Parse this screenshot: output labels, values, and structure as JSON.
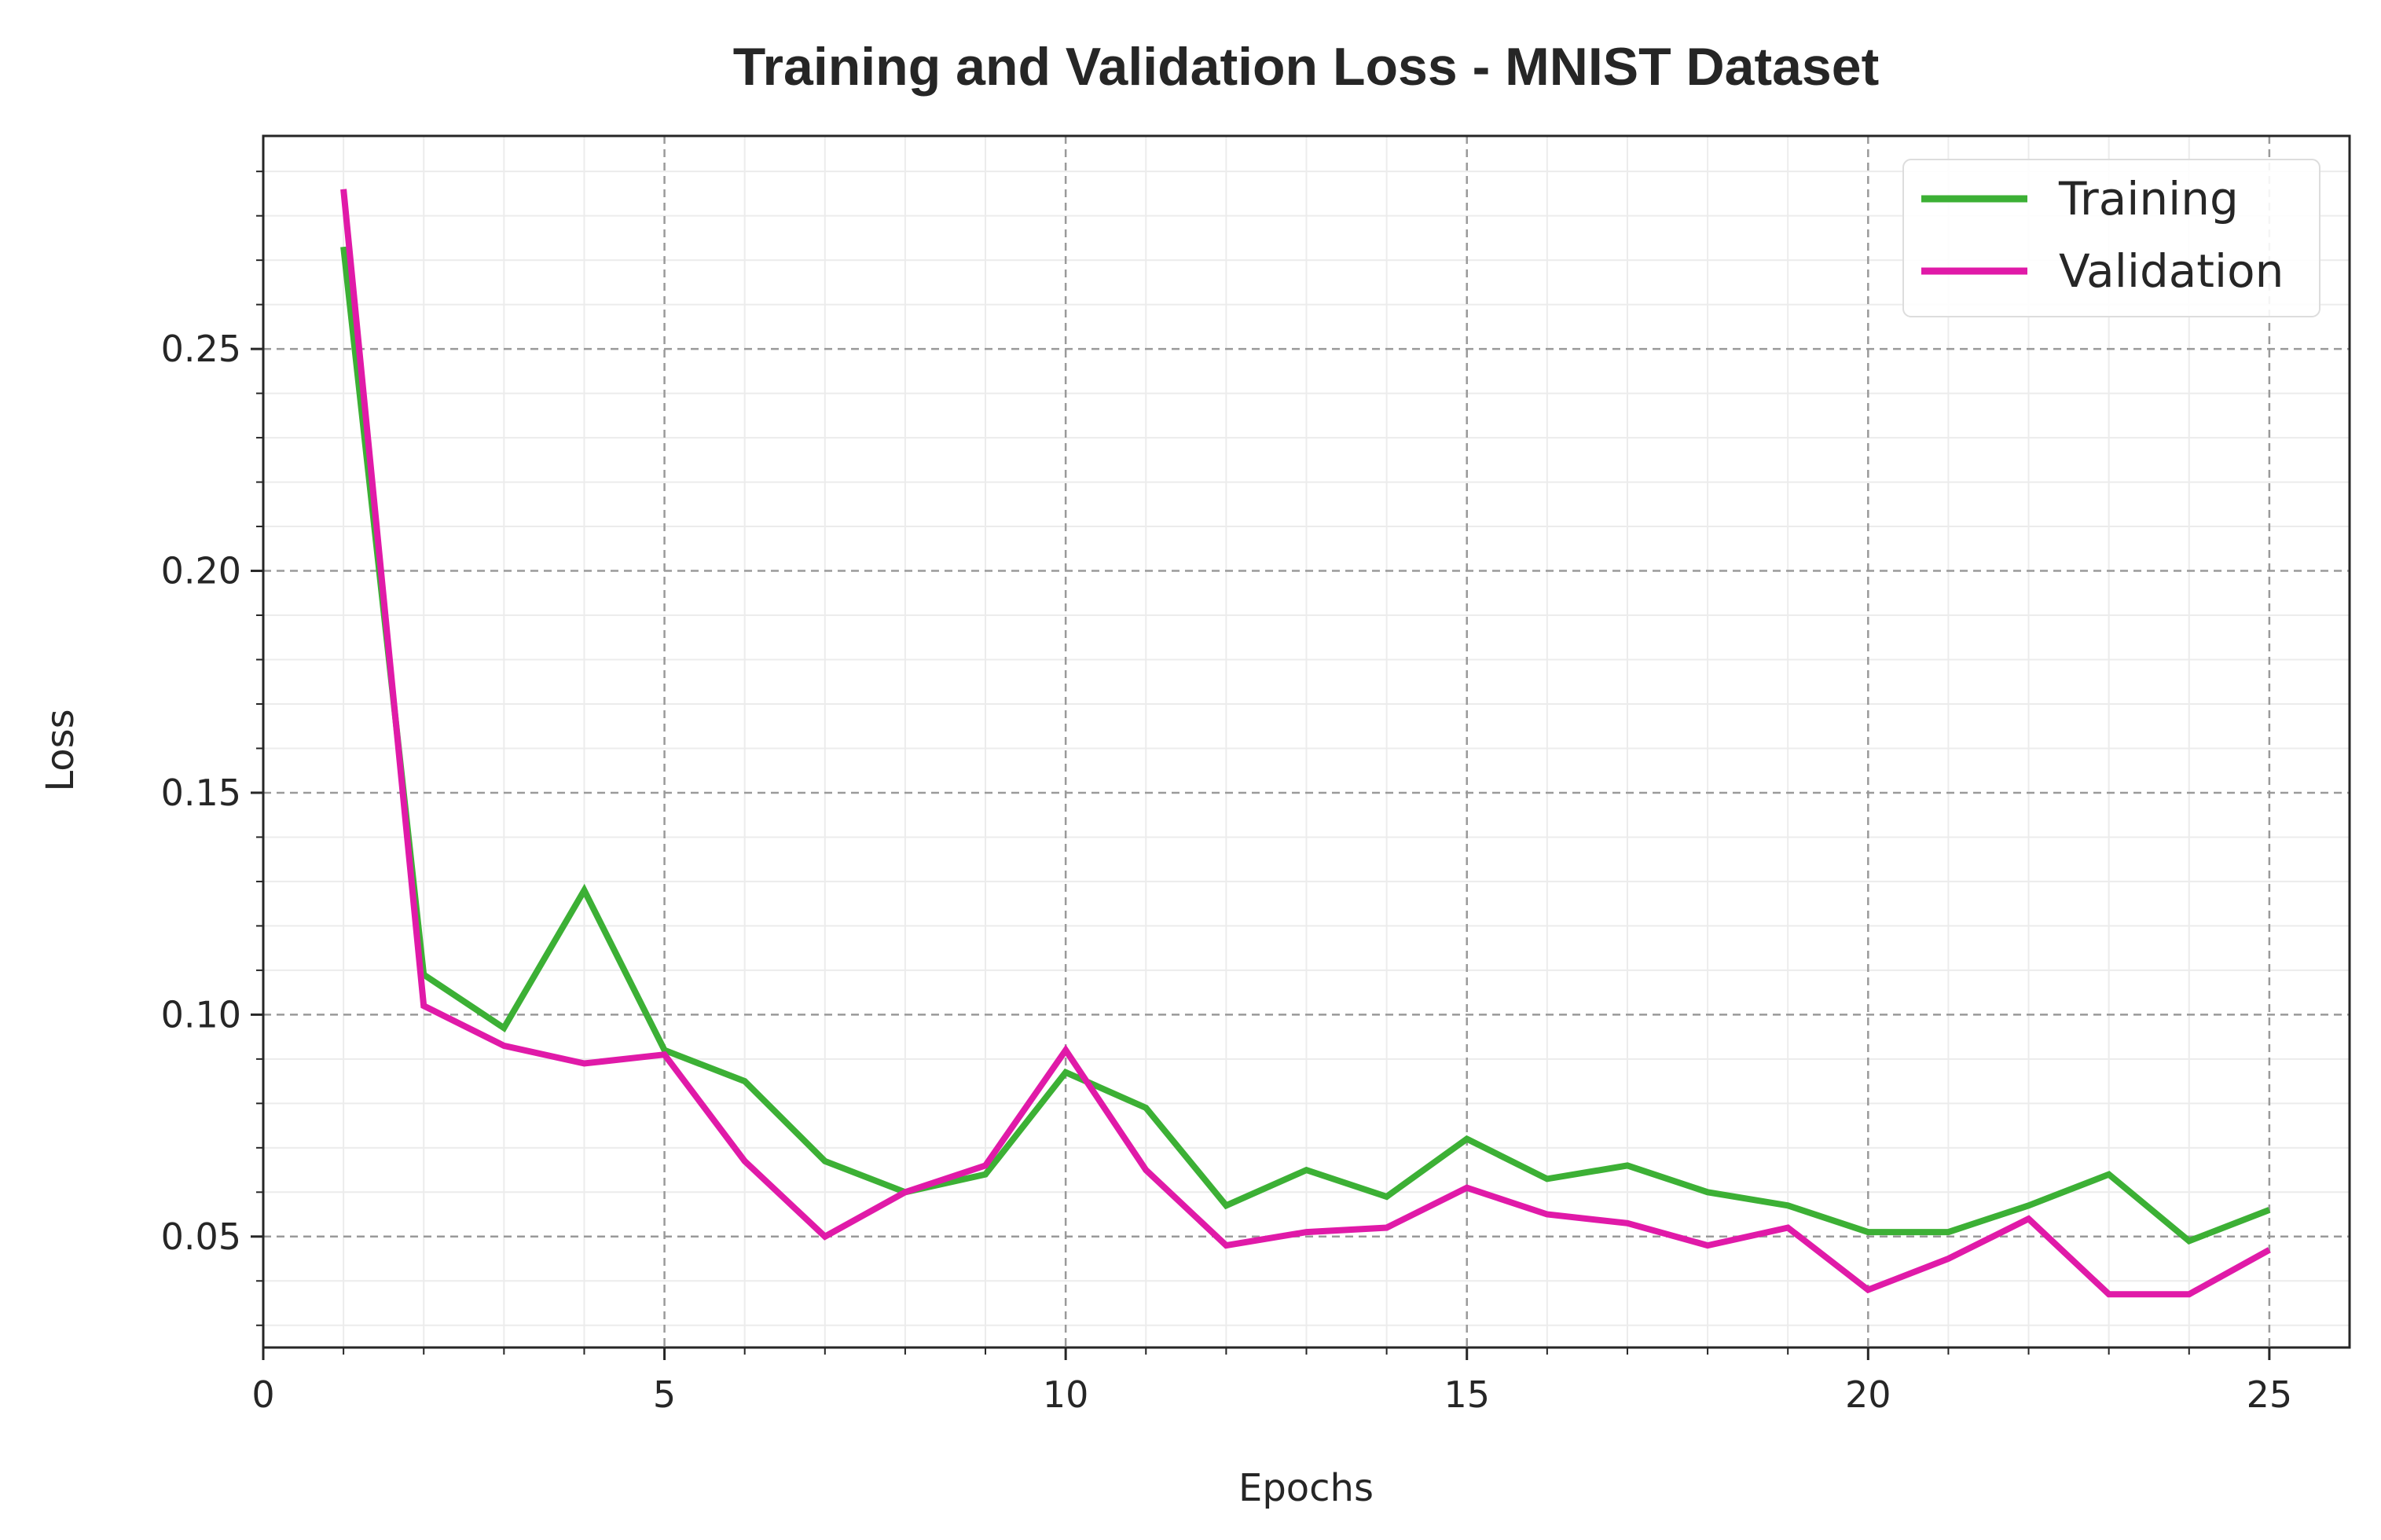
{
  "chart_data": {
    "type": "line",
    "title": "Training and Validation Loss - MNIST Dataset",
    "xlabel": "Epochs",
    "ylabel": "Loss",
    "xlim": [
      0,
      26
    ],
    "ylim": [
      0.025,
      0.298
    ],
    "xticks": [
      0,
      5,
      10,
      15,
      20,
      25
    ],
    "xtick_labels": [
      "0",
      "5",
      "10",
      "15",
      "20",
      "25"
    ],
    "yticks": [
      0.05,
      0.1,
      0.15,
      0.2,
      0.25
    ],
    "ytick_labels": [
      "0.05",
      "0.10",
      "0.15",
      "0.20",
      "0.25"
    ],
    "grid": true,
    "minor_grid": true,
    "legend_position": "top-right",
    "x": [
      1,
      2,
      3,
      4,
      5,
      6,
      7,
      8,
      9,
      10,
      11,
      12,
      13,
      14,
      15,
      16,
      17,
      18,
      19,
      20,
      21,
      22,
      23,
      24,
      25
    ],
    "series": [
      {
        "name": "Training",
        "color": "#3cb035",
        "values": [
          0.273,
          0.109,
          0.097,
          0.128,
          0.092,
          0.085,
          0.067,
          0.06,
          0.064,
          0.087,
          0.079,
          0.057,
          0.065,
          0.059,
          0.072,
          0.063,
          0.066,
          0.06,
          0.057,
          0.051,
          0.051,
          0.057,
          0.064,
          0.049,
          0.056
        ]
      },
      {
        "name": "Validation",
        "color": "#e01aa8",
        "values": [
          0.286,
          0.102,
          0.093,
          0.089,
          0.091,
          0.067,
          0.05,
          0.06,
          0.066,
          0.092,
          0.065,
          0.048,
          0.051,
          0.052,
          0.061,
          0.055,
          0.053,
          0.048,
          0.052,
          0.038,
          0.045,
          0.054,
          0.037,
          0.037,
          0.047
        ]
      }
    ]
  }
}
